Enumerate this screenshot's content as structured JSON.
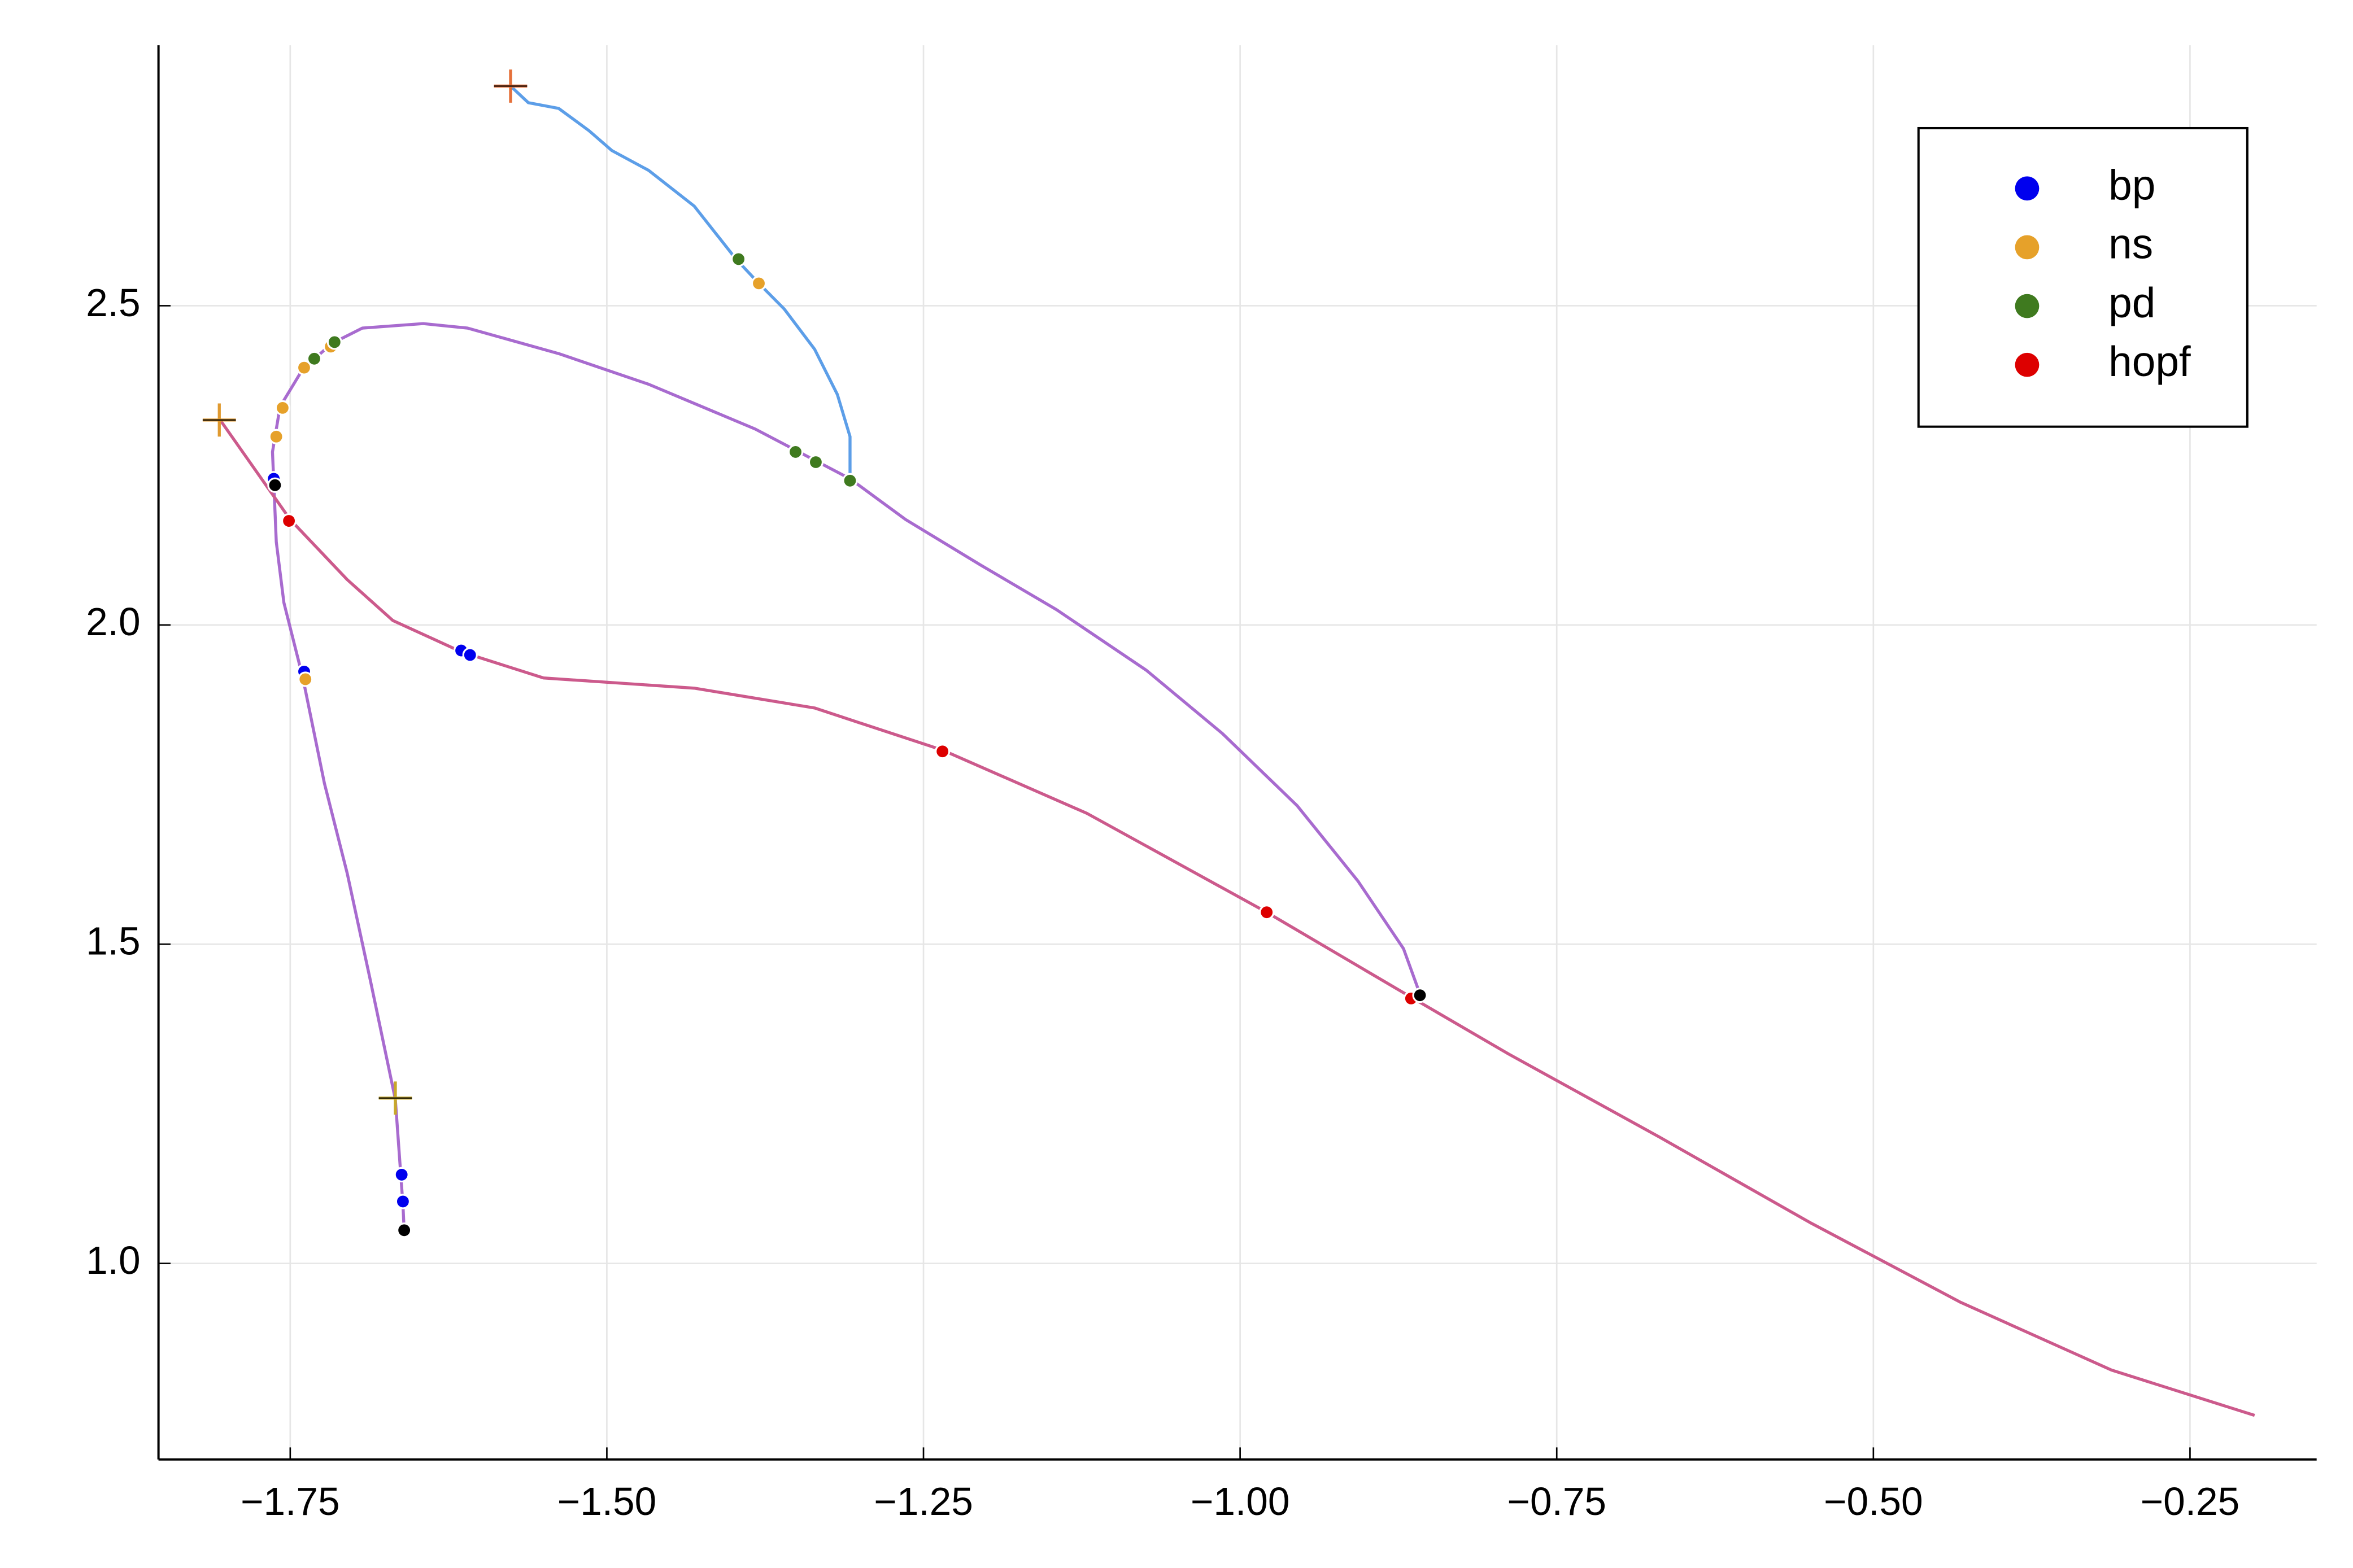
{
  "chart_data": {
    "type": "line",
    "xlim": [
      -1.854,
      -0.15
    ],
    "ylim": [
      0.693,
      2.908
    ],
    "xticks": [
      {
        "value": -1.75,
        "label": "−1.75"
      },
      {
        "value": -1.5,
        "label": "−1.50"
      },
      {
        "value": -1.25,
        "label": "−1.25"
      },
      {
        "value": -1.0,
        "label": "−1.00"
      },
      {
        "value": -0.75,
        "label": "−0.75"
      },
      {
        "value": -0.5,
        "label": "−0.50"
      },
      {
        "value": -0.25,
        "label": "−0.25"
      }
    ],
    "yticks": [
      {
        "value": 1,
        "label": "1.0"
      },
      1.5,
      {
        "value": 2,
        "label": "2.0"
      },
      2.5
    ],
    "grid": true,
    "legend": "upper right",
    "series": [
      {
        "type": "line",
        "color": "#5c9ee8",
        "x": [
          -1.576,
          -1.562,
          -1.538,
          -1.514,
          -1.496,
          -1.467,
          -1.431,
          -1.398,
          -1.38,
          -1.36,
          -1.336,
          -1.318,
          -1.308,
          -1.308
        ],
        "values": [
          2.844,
          2.818,
          2.809,
          2.774,
          2.743,
          2.712,
          2.656,
          2.573,
          2.535,
          2.495,
          2.432,
          2.361,
          2.295,
          2.229
        ]
      },
      {
        "type": "line",
        "color": "#a86bcf",
        "x": [
          -0.858,
          -0.871,
          -0.907,
          -0.955,
          -1.014,
          -1.074,
          -1.145,
          -1.205,
          -1.264,
          -1.308,
          -1.383,
          -1.467,
          -1.538,
          -1.61,
          -1.645,
          -1.693,
          -1.717,
          -1.74,
          -1.758,
          -1.764,
          -1.763,
          -1.761,
          -1.755,
          -1.74,
          -1.723,
          -1.705,
          -1.687,
          -1.667,
          -1.661,
          -1.66
        ],
        "values": [
          1.422,
          1.493,
          1.599,
          1.717,
          1.83,
          1.929,
          2.024,
          2.094,
          2.165,
          2.229,
          2.307,
          2.377,
          2.425,
          2.465,
          2.472,
          2.465,
          2.441,
          2.401,
          2.342,
          2.271,
          2.224,
          2.13,
          2.035,
          1.917,
          1.752,
          1.611,
          1.446,
          1.257,
          1.092,
          1.05
        ]
      },
      {
        "type": "line",
        "color": "#cc5a8c",
        "x": [
          -1.806,
          -1.75,
          -1.705,
          -1.669,
          -1.615,
          -1.55,
          -1.431,
          -1.336,
          -1.235,
          -1.121,
          -0.979,
          -0.865,
          -0.788,
          -0.669,
          -0.55,
          -0.431,
          -0.312,
          -0.199
        ],
        "values": [
          2.323,
          2.165,
          2.071,
          2.007,
          1.958,
          1.917,
          1.901,
          1.87,
          1.804,
          1.705,
          1.55,
          1.417,
          1.328,
          1.198,
          1.064,
          0.939,
          0.833,
          0.762
        ]
      },
      {
        "type": "scatter",
        "name": "bp",
        "color": "#0000ee",
        "x": [
          -1.763,
          -1.739,
          -1.615,
          -1.608,
          -1.662,
          -1.661
        ],
        "values": [
          2.229,
          1.927,
          1.96,
          1.953,
          1.139,
          1.097
        ]
      },
      {
        "type": "scatter",
        "name": "ns",
        "color": "#e6a12a",
        "x": [
          -1.38,
          -1.761,
          -1.756,
          -1.739,
          -1.718,
          -1.738
        ],
        "values": [
          2.535,
          2.295,
          2.34,
          2.403,
          2.436,
          1.915
        ]
      },
      {
        "type": "scatter",
        "name": "pd",
        "color": "#3f7a1f",
        "x": [
          -1.396,
          -1.308,
          -1.351,
          -1.335,
          -1.731,
          -1.715
        ],
        "values": [
          2.573,
          2.226,
          2.271,
          2.255,
          2.417,
          2.443
        ]
      },
      {
        "type": "scatter",
        "name": "hopf",
        "color": "#dd0000",
        "x": [
          -1.751,
          -1.235,
          -0.979,
          -0.865
        ],
        "values": [
          2.163,
          1.802,
          1.55,
          1.415
        ]
      },
      {
        "type": "scatter",
        "color": "#000000",
        "x": [
          -1.762,
          -1.66,
          -0.858
        ],
        "values": [
          2.219,
          1.052,
          1.42
        ]
      },
      {
        "type": "plus",
        "color": "#e5703a",
        "x": [
          -1.576
        ],
        "values": [
          2.844
        ]
      },
      {
        "type": "plus",
        "color": "#e09a30",
        "x": [
          -1.806
        ],
        "values": [
          2.321
        ]
      },
      {
        "type": "plus",
        "color": "#c8a82a",
        "x": [
          -1.667
        ],
        "values": [
          1.259
        ]
      }
    ]
  }
}
